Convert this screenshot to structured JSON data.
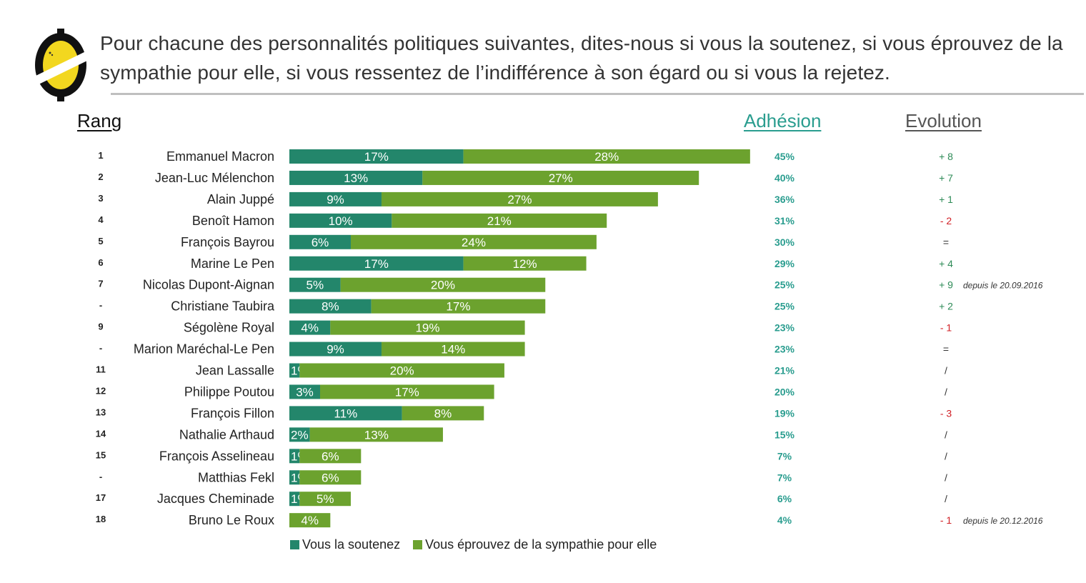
{
  "header": {
    "question": "Pour chacune des personnalités politiques suivantes, dites-nous si vous la soutenez, si vous éprouvez de la sympathie pour elle, si vous ressentez de l’indifférence à son égard ou si vous la rejetez.",
    "rang_label": "Rang",
    "adhesion_label": "Adhésion",
    "evolution_label": "Evolution"
  },
  "colors": {
    "support": "#23866b",
    "sympathy": "#6ca22e",
    "adhesion_text": "#2a9d8f",
    "evo_positive": "#2e8b57",
    "evo_negative": "#d11f25",
    "evo_neutral": "#333333",
    "logo_yellow": "#f2d71f",
    "logo_dark": "#111111"
  },
  "chart_data": {
    "type": "bar",
    "orientation": "horizontal",
    "stacked": true,
    "categories": [
      "Emmanuel Macron",
      "Jean-Luc Mélenchon",
      "Alain Juppé",
      "Benoît Hamon",
      "François Bayrou",
      "Marine Le Pen",
      "Nicolas Dupont-Aignan",
      "Christiane Taubira",
      "Ségolène Royal",
      "Marion Maréchal-Le Pen",
      "Jean Lassalle",
      "Philippe Poutou",
      "François Fillon",
      "Nathalie Arthaud",
      "François Asselineau",
      "Matthias Fekl",
      "Jacques Cheminade",
      "Bruno Le Roux"
    ],
    "ranks": [
      "1",
      "2",
      "3",
      "4",
      "5",
      "6",
      "7",
      "-",
      "9",
      "-",
      "11",
      "12",
      "13",
      "14",
      "15",
      "-",
      "17",
      "18"
    ],
    "series": [
      {
        "name": "Vous la soutenez",
        "values": [
          17,
          13,
          9,
          10,
          6,
          17,
          5,
          8,
          4,
          9,
          1,
          3,
          11,
          2,
          1,
          1,
          1,
          0
        ]
      },
      {
        "name": "Vous éprouvez de la sympathie pour elle",
        "values": [
          28,
          27,
          27,
          21,
          24,
          12,
          20,
          17,
          19,
          14,
          20,
          17,
          8,
          13,
          6,
          6,
          5,
          4
        ]
      }
    ],
    "adhesion": [
      "45%",
      "40%",
      "36%",
      "31%",
      "30%",
      "29%",
      "25%",
      "25%",
      "23%",
      "23%",
      "21%",
      "20%",
      "19%",
      "15%",
      "7%",
      "7%",
      "6%",
      "4%"
    ],
    "evolution": [
      "+ 8",
      "+ 7",
      "+ 1",
      "- 2",
      "=",
      "+ 4",
      "+ 9",
      "+ 2",
      "- 1",
      "=",
      "/",
      "/",
      "- 3",
      "/",
      "/",
      "/",
      "/",
      "- 1"
    ],
    "evolution_notes": [
      "",
      "",
      "",
      "",
      "",
      "",
      "depuis le 20.09.2016",
      "",
      "",
      "",
      "",
      "",
      "",
      "",
      "",
      "",
      "",
      "depuis le 20.12.2016"
    ],
    "legend": "bottom"
  }
}
